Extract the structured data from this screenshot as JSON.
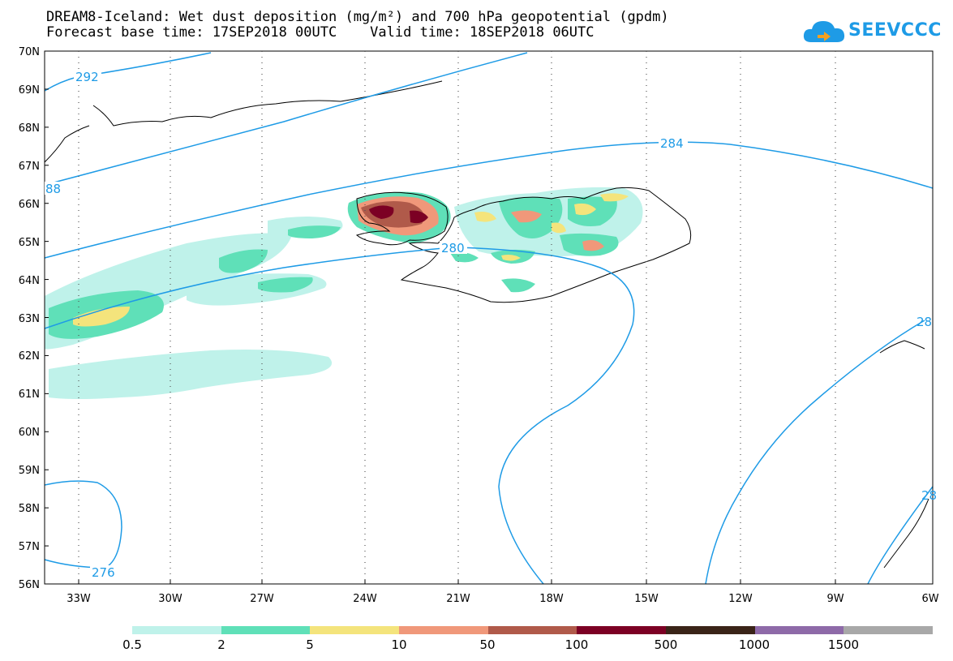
{
  "title": {
    "line1": "DREAM8-Iceland: Wet dust deposition (mg/m²) and 700 hPa geopotential (gpdm)",
    "line2": "Forecast base time: 17SEP2018 00UTC    Valid time: 18SEP2018 06UTC"
  },
  "logo": {
    "text": "SEEVCCC",
    "icon": "cloud-icon",
    "color": "#1e9be6"
  },
  "map": {
    "lat_labels": [
      "70N",
      "69N",
      "68N",
      "67N",
      "66N",
      "65N",
      "64N",
      "63N",
      "62N",
      "61N",
      "60N",
      "59N",
      "58N",
      "57N",
      "56N"
    ],
    "lon_labels": [
      "33W",
      "30W",
      "27W",
      "24W",
      "21W",
      "18W",
      "15W",
      "12W",
      "9W",
      "6W"
    ],
    "contour_labels": [
      "292",
      "88",
      "284",
      "280",
      "276",
      "28",
      "28"
    ],
    "contour_color": "#1e9be6"
  },
  "legend": {
    "labels": [
      "0.5",
      "2",
      "5",
      "10",
      "50",
      "100",
      "500",
      "1000",
      "1500"
    ],
    "colors": [
      "#bff2ea",
      "#5fe0b8",
      "#f4e47c",
      "#f0987a",
      "#b05a4a",
      "#7c0024",
      "#3a2418",
      "#8e6aa8",
      "#a8a8a8"
    ]
  }
}
